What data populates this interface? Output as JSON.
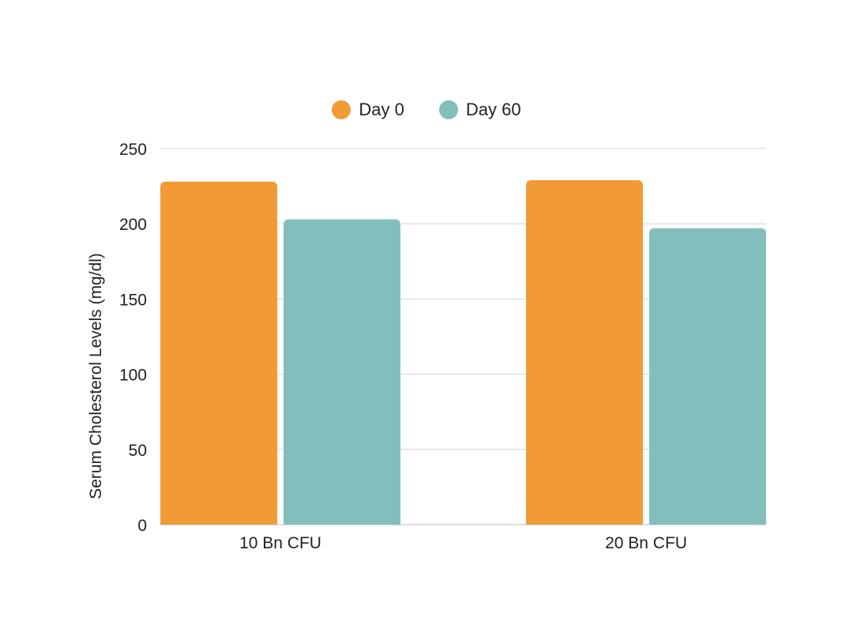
{
  "chart_data": {
    "type": "bar",
    "categories": [
      "10 Bn CFU",
      "20 Bn CFU"
    ],
    "series": [
      {
        "name": "Day 0",
        "values": [
          228,
          229
        ],
        "color": "#F29A36"
      },
      {
        "name": "Day 60",
        "values": [
          203,
          197
        ],
        "color": "#82BFBC"
      }
    ],
    "title": "",
    "xlabel": "",
    "ylabel": "Serum Cholesterol Levels (mg/dl)",
    "ylim": [
      0,
      250
    ],
    "yticks": [
      0,
      50,
      100,
      150,
      200,
      250
    ],
    "grid": true,
    "legend_position": "top-center"
  }
}
